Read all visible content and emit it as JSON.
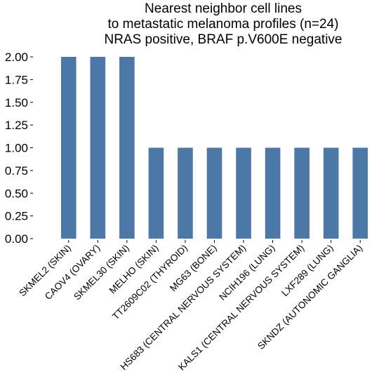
{
  "chart_data": {
    "type": "bar",
    "title": [
      "Nearest neighbor cell lines",
      "to metastatic melanoma profiles (n=24)",
      "NRAS positive, BRAF p.V600E negative"
    ],
    "xlabel": "",
    "ylabel": "",
    "categories": [
      "SKMEL2 (SKIN)",
      "CAOV4 (OVARY)",
      "SKMEL30 (SKIN)",
      "MELHO (SKIN)",
      "TT2609C02 (THYROID)",
      "MG63 (BONE)",
      "HS683 (CENTRAL NERVOUS SYSTEM)",
      "NCIH196 (LUNG)",
      "KALS1 (CENTRAL NERVOUS SYSTEM)",
      "LXF289 (LUNG)",
      "SKNDZ (AUTONOMIC GANGLIA)"
    ],
    "values": [
      2,
      2,
      2,
      1,
      1,
      1,
      1,
      1,
      1,
      1,
      1
    ],
    "ylim": [
      0,
      2
    ],
    "yticks": [
      "0.00",
      "0.25",
      "0.50",
      "0.75",
      "1.00",
      "1.25",
      "1.50",
      "1.75",
      "2.00"
    ],
    "grid": false,
    "bar_color": "#4c78a8"
  }
}
